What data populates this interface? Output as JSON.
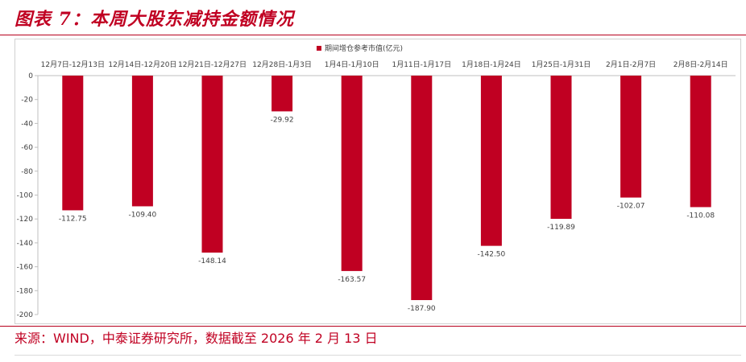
{
  "figure": {
    "title": "图表 7：本周大股东减持金额情况",
    "source": "来源：WIND，中泰证券研究所，数据截至 2026 年 2 月 13 日"
  },
  "colors": {
    "bar": "#c00022",
    "accent": "#c00022",
    "axis": "#bfbfbf",
    "text": "#404040"
  },
  "chart_data": {
    "type": "bar",
    "title": "",
    "xlabel": "",
    "ylabel": "",
    "legend": {
      "position": "top",
      "entries": [
        "期间增仓参考市值(亿元)"
      ]
    },
    "categories": [
      "12月7日-12月13日",
      "12月14日-12月20日",
      "12月21日-12月27日",
      "12月28日-1月3日",
      "1月4日-1月10日",
      "1月11日-1月17日",
      "1月18日-1月24日",
      "1月25日-1月31日",
      "2月1日-2月7日",
      "2月8日-2月14日"
    ],
    "series": [
      {
        "name": "期间增仓参考市值(亿元)",
        "values": [
          -112.75,
          -109.4,
          -148.14,
          -29.92,
          -163.57,
          -187.9,
          -142.5,
          -119.89,
          -102.07,
          -110.08
        ]
      }
    ],
    "data_labels": [
      "-112.75",
      "-109.40",
      "-148.14",
      "-29.92",
      "-163.57",
      "-187.90",
      "-142.50",
      "-119.89",
      "-102.07",
      "-110.08"
    ],
    "ylim": [
      -200,
      0
    ],
    "y_ticks": [
      "0",
      "-20",
      "-40",
      "-60",
      "-80",
      "-100",
      "-120",
      "-140",
      "-160",
      "-180",
      "-200"
    ],
    "x_axis_position": "top",
    "grid": false
  }
}
